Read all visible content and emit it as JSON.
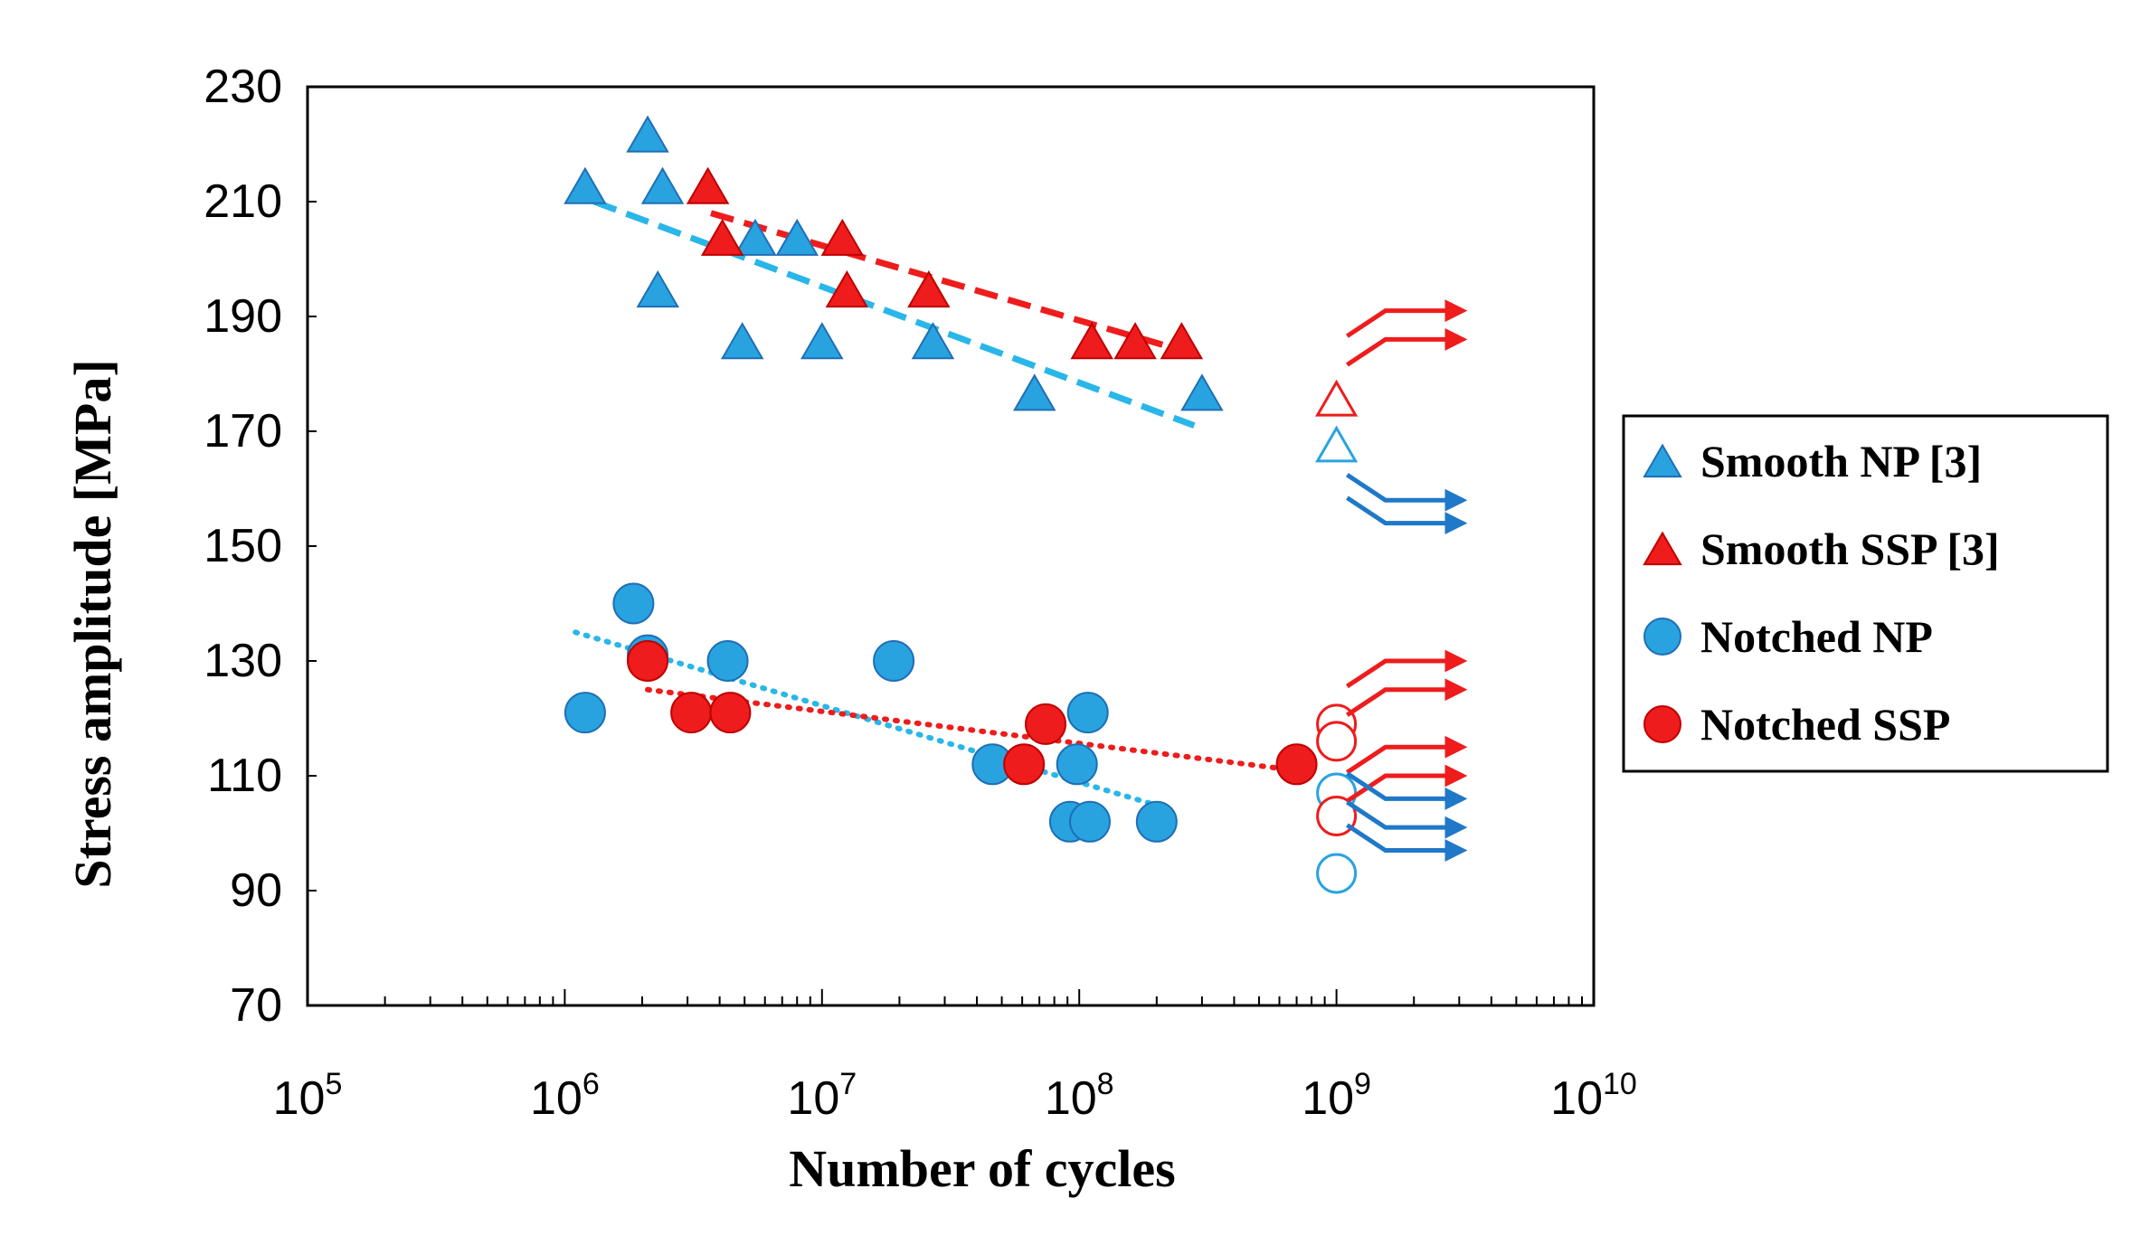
{
  "chart_data": {
    "type": "scatter",
    "title": "",
    "xlabel": "Number of cycles",
    "ylabel": "Stress amplitude  [MPa]",
    "x_scale": "log",
    "xlim": [
      100000,
      10000000000
    ],
    "ylim": [
      70,
      230
    ],
    "y_ticks": [
      70,
      90,
      110,
      130,
      150,
      170,
      190,
      210,
      230
    ],
    "y_tick_labels": [
      "70",
      "90",
      "110",
      "130",
      "150",
      "170",
      "190",
      "210",
      "230"
    ],
    "x_ticks": [
      {
        "value": 100000,
        "base": "10",
        "exp": "5"
      },
      {
        "value": 1000000,
        "base": "10",
        "exp": "6"
      },
      {
        "value": 10000000,
        "base": "10",
        "exp": "7"
      },
      {
        "value": 100000000,
        "base": "10",
        "exp": "8"
      },
      {
        "value": 1000000000,
        "base": "10",
        "exp": "9"
      },
      {
        "value": 10000000000,
        "base": "10",
        "exp": "10"
      }
    ],
    "legend_position": "right",
    "series": [
      {
        "name": "Smooth NP [3]",
        "marker": "triangle",
        "color": "#29a3e0",
        "edge": "#1f6fb5",
        "points": [
          {
            "x": 1200000,
            "y": 212
          },
          {
            "x": 2100000,
            "y": 221
          },
          {
            "x": 2400000,
            "y": 212
          },
          {
            "x": 2300000,
            "y": 194
          },
          {
            "x": 4900000,
            "y": 185
          },
          {
            "x": 5500000,
            "y": 203
          },
          {
            "x": 8000000,
            "y": 203
          },
          {
            "x": 10000000,
            "y": 185
          },
          {
            "x": 27000000,
            "y": 185
          },
          {
            "x": 67000000,
            "y": 176
          },
          {
            "x": 300000000,
            "y": 176
          }
        ],
        "runouts": [
          {
            "x": 1000000000,
            "y": 167
          }
        ],
        "trend": {
          "style": "dashed",
          "x1": 1300000,
          "y1": 210,
          "x2": 280000000,
          "y2": 171
        }
      },
      {
        "name": "Smooth SSP [3]",
        "marker": "triangle",
        "color": "#ee1c1c",
        "edge": "#c00000",
        "points": [
          {
            "x": 3600000,
            "y": 212
          },
          {
            "x": 4100000,
            "y": 203
          },
          {
            "x": 12000000,
            "y": 203
          },
          {
            "x": 12500000,
            "y": 194
          },
          {
            "x": 26000000,
            "y": 194
          },
          {
            "x": 112000000,
            "y": 185
          },
          {
            "x": 165000000,
            "y": 185
          },
          {
            "x": 250000000,
            "y": 185
          }
        ],
        "runouts": [
          {
            "x": 1000000000,
            "y": 175
          }
        ],
        "trend": {
          "style": "dashed",
          "x1": 3700000,
          "y1": 208,
          "x2": 255000000,
          "y2": 184
        }
      },
      {
        "name": "Notched NP",
        "marker": "circle",
        "color": "#29a3e0",
        "edge": "#1f6fb5",
        "points": [
          {
            "x": 1200000,
            "y": 121
          },
          {
            "x": 1850000,
            "y": 140
          },
          {
            "x": 2100000,
            "y": 131
          },
          {
            "x": 4300000,
            "y": 130
          },
          {
            "x": 19000000,
            "y": 130
          },
          {
            "x": 46000000,
            "y": 112
          },
          {
            "x": 92000000,
            "y": 102
          },
          {
            "x": 98000000,
            "y": 112
          },
          {
            "x": 110000000,
            "y": 102
          },
          {
            "x": 108000000,
            "y": 121
          },
          {
            "x": 200000000,
            "y": 102
          }
        ],
        "runouts": [
          {
            "x": 1000000000,
            "y": 93
          },
          {
            "x": 1000000000,
            "y": 107
          }
        ],
        "trend": {
          "style": "dotted",
          "x1": 1100000,
          "y1": 135,
          "x2": 195000000,
          "y2": 105
        }
      },
      {
        "name": "Notched SSP",
        "marker": "circle",
        "color": "#ee1c1c",
        "edge": "#c00000",
        "points": [
          {
            "x": 2100000,
            "y": 130
          },
          {
            "x": 3100000,
            "y": 121
          },
          {
            "x": 4400000,
            "y": 121
          },
          {
            "x": 61000000,
            "y": 112
          },
          {
            "x": 74000000,
            "y": 119
          },
          {
            "x": 700000000,
            "y": 112
          }
        ],
        "runouts": [
          {
            "x": 1000000000,
            "y": 119
          },
          {
            "x": 1000000000,
            "y": 116
          },
          {
            "x": 1000000000,
            "y": 103
          }
        ],
        "trend": {
          "style": "dotted",
          "x1": 2100000,
          "y1": 125,
          "x2": 680000000,
          "y2": 111
        }
      }
    ],
    "runout_arrows": [
      {
        "series": "Smooth SSP [3]",
        "y": 191
      },
      {
        "series": "Smooth SSP [3]",
        "y": 186
      },
      {
        "series": "Smooth NP [3]",
        "y": 158
      },
      {
        "series": "Smooth NP [3]",
        "y": 154
      },
      {
        "series": "Notched SSP",
        "y": 130
      },
      {
        "series": "Notched SSP",
        "y": 125
      },
      {
        "series": "Notched SSP",
        "y": 115
      },
      {
        "series": "Notched SSP",
        "y": 110
      },
      {
        "series": "Notched NP",
        "y": 106
      },
      {
        "series": "Notched NP",
        "y": 101
      },
      {
        "series": "Notched NP",
        "y": 97
      }
    ]
  }
}
